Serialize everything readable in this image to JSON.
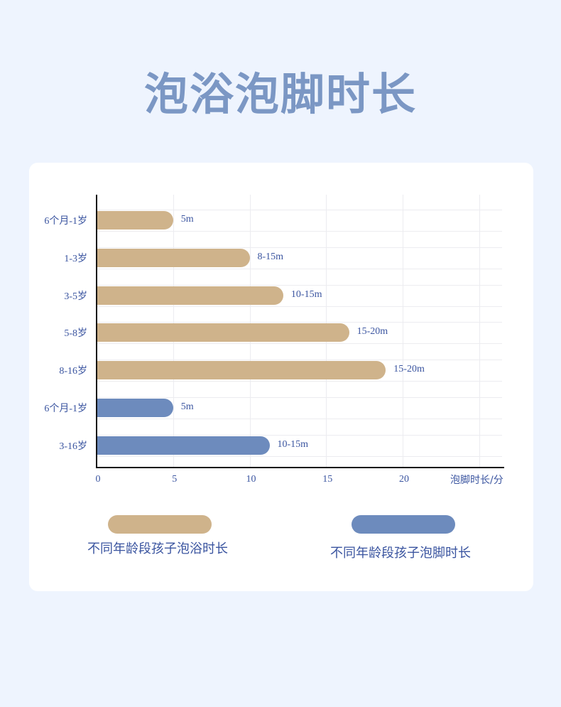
{
  "title": "泡浴泡脚时长",
  "chart_data": {
    "type": "bar",
    "orientation": "horizontal",
    "title": "泡浴泡脚时长",
    "xlabel": "泡脚时长/分",
    "ylabel": "",
    "xlim": [
      0,
      25
    ],
    "xticks": [
      "0",
      "5",
      "10",
      "15",
      "20"
    ],
    "grid": true,
    "legend_placement": "bottom",
    "categories": [
      "6个月-1岁",
      "1-3岁",
      "3-5岁",
      "5-8岁",
      "8-16岁",
      "6个月-1岁",
      "3-16岁"
    ],
    "values": [
      5,
      10,
      12.2,
      16.5,
      18.9,
      5,
      11.3
    ],
    "data_labels": [
      "5m",
      "8-15m",
      "10-15m",
      "15-20m",
      "15-20m",
      "5m",
      "10-15m"
    ],
    "bar_series": [
      0,
      0,
      0,
      0,
      0,
      1,
      1
    ],
    "series": [
      {
        "name": "不同年龄段孩子泡浴时长",
        "color": "#cfb38b"
      },
      {
        "name": "不同年龄段孩子泡脚时长",
        "color": "#6d8bbd"
      }
    ]
  }
}
